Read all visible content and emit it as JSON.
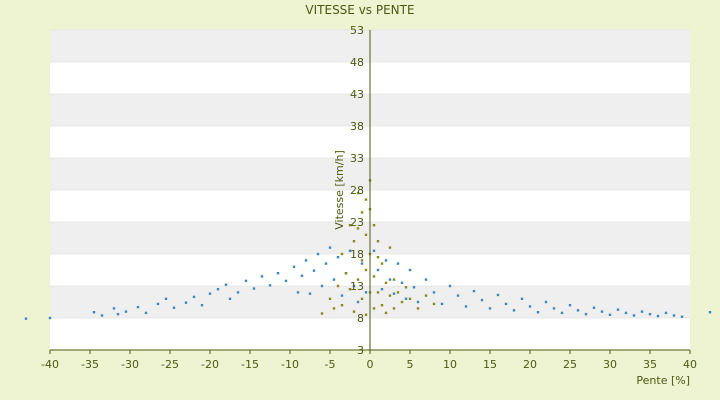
{
  "chart_data": {
    "type": "scatter",
    "title": "VITESSE vs PENTE",
    "xlabel": "Pente [%]",
    "ylabel": "Vitesse [km/h]",
    "xlim": [
      -40,
      40
    ],
    "ylim": [
      3,
      53
    ],
    "x_ticks": [
      "-40",
      "-35",
      "-30",
      "-25",
      "-20",
      "-15",
      "-10",
      "-5",
      "0",
      "5",
      "10",
      "15",
      "20",
      "25",
      "30",
      "35",
      "40"
    ],
    "y_ticks": [
      "3",
      "8",
      "13",
      "18",
      "23",
      "28",
      "33",
      "38",
      "43",
      "48",
      "53"
    ],
    "grid": "horizontal bands",
    "colors": {
      "series_blue": "#3d86c6",
      "series_olive": "#8a8a1a",
      "axis": "#4a5a10",
      "band": "#efefef"
    },
    "series": [
      {
        "color": "#3d86c6",
        "points": [
          [
            -43.0,
            7.9
          ],
          [
            -34.5,
            8.9
          ],
          [
            -33.5,
            8.4
          ],
          [
            -32.0,
            9.5
          ],
          [
            -31.5,
            8.6
          ],
          [
            -30.5,
            9.0
          ],
          [
            -29.0,
            9.7
          ],
          [
            -28.0,
            8.8
          ],
          [
            -26.5,
            10.2
          ],
          [
            -25.5,
            11.0
          ],
          [
            -24.5,
            9.6
          ],
          [
            -23.0,
            10.4
          ],
          [
            -22.0,
            11.3
          ],
          [
            -21.0,
            10.0
          ],
          [
            -20.0,
            11.8
          ],
          [
            -19.0,
            12.5
          ],
          [
            -18.0,
            13.2
          ],
          [
            -17.5,
            11.0
          ],
          [
            -16.5,
            12.0
          ],
          [
            -15.5,
            13.8
          ],
          [
            -14.5,
            12.6
          ],
          [
            -13.5,
            14.5
          ],
          [
            -12.5,
            13.1
          ],
          [
            -11.5,
            15.0
          ],
          [
            -10.5,
            13.8
          ],
          [
            -9.5,
            16.0
          ],
          [
            -9.0,
            12.0
          ],
          [
            -8.5,
            14.6
          ],
          [
            -8.0,
            17.0
          ],
          [
            -7.5,
            11.8
          ],
          [
            -7.0,
            15.4
          ],
          [
            -6.5,
            18.0
          ],
          [
            -6.0,
            13.0
          ],
          [
            -5.5,
            16.5
          ],
          [
            -5.0,
            19.0
          ],
          [
            -4.5,
            14.0
          ],
          [
            -4.0,
            17.5
          ],
          [
            -3.5,
            11.5
          ],
          [
            -3.0,
            15.0
          ],
          [
            -2.5,
            18.5
          ],
          [
            -2.0,
            13.0
          ],
          [
            -1.5,
            10.5
          ],
          [
            -1.0,
            16.5
          ],
          [
            -0.5,
            12.0
          ],
          [
            0.5,
            18.5
          ],
          [
            1.0,
            15.5
          ],
          [
            1.5,
            12.5
          ],
          [
            2.0,
            17.0
          ],
          [
            2.5,
            14.0
          ],
          [
            3.0,
            11.8
          ],
          [
            3.5,
            16.5
          ],
          [
            4.0,
            13.5
          ],
          [
            4.5,
            11.0
          ],
          [
            5.0,
            15.5
          ],
          [
            5.5,
            12.8
          ],
          [
            6.0,
            10.5
          ],
          [
            7.0,
            14.0
          ],
          [
            8.0,
            12.0
          ],
          [
            9.0,
            10.2
          ],
          [
            10.0,
            13.0
          ],
          [
            11.0,
            11.5
          ],
          [
            12.0,
            9.8
          ],
          [
            13.0,
            12.2
          ],
          [
            14.0,
            10.8
          ],
          [
            15.0,
            9.5
          ],
          [
            16.0,
            11.6
          ],
          [
            17.0,
            10.2
          ],
          [
            18.0,
            9.2
          ],
          [
            19.0,
            11.0
          ],
          [
            20.0,
            9.8
          ],
          [
            21.0,
            8.9
          ],
          [
            22.0,
            10.5
          ],
          [
            23.0,
            9.5
          ],
          [
            24.0,
            8.8
          ],
          [
            25.0,
            10.0
          ],
          [
            26.0,
            9.2
          ],
          [
            27.0,
            8.6
          ],
          [
            28.0,
            9.6
          ],
          [
            29.0,
            9.0
          ],
          [
            30.0,
            8.5
          ],
          [
            31.0,
            9.3
          ],
          [
            32.0,
            8.8
          ],
          [
            33.0,
            8.4
          ],
          [
            34.0,
            9.0
          ],
          [
            35.0,
            8.6
          ],
          [
            36.0,
            8.3
          ],
          [
            37.0,
            8.8
          ],
          [
            38.0,
            8.4
          ],
          [
            39.0,
            8.2
          ],
          [
            42.5,
            8.9
          ],
          [
            -40.0,
            8.0
          ]
        ]
      },
      {
        "color": "#8a8a1a",
        "points": [
          [
            -6.0,
            8.7
          ],
          [
            -5.0,
            11.0
          ],
          [
            -4.5,
            9.5
          ],
          [
            -4.0,
            13.0
          ],
          [
            -3.5,
            10.0
          ],
          [
            -3.0,
            15.0
          ],
          [
            -2.5,
            12.5
          ],
          [
            -2.0,
            9.0
          ],
          [
            -2.0,
            20.0
          ],
          [
            -1.5,
            22.0
          ],
          [
            -1.5,
            14.0
          ],
          [
            -1.0,
            24.5
          ],
          [
            -1.0,
            17.0
          ],
          [
            -1.0,
            11.0
          ],
          [
            -0.5,
            26.5
          ],
          [
            -0.5,
            21.0
          ],
          [
            -0.5,
            8.5
          ],
          [
            0.0,
            25.0
          ],
          [
            0.0,
            18.0
          ],
          [
            0.0,
            12.0
          ],
          [
            0.5,
            22.5
          ],
          [
            0.5,
            14.5
          ],
          [
            0.5,
            9.5
          ],
          [
            1.0,
            20.0
          ],
          [
            1.0,
            12.0
          ],
          [
            1.5,
            16.5
          ],
          [
            1.5,
            10.0
          ],
          [
            2.0,
            13.5
          ],
          [
            2.0,
            8.8
          ],
          [
            2.5,
            11.5
          ],
          [
            3.0,
            14.0
          ],
          [
            3.0,
            9.5
          ],
          [
            3.5,
            12.0
          ],
          [
            4.0,
            10.5
          ],
          [
            4.5,
            12.8
          ],
          [
            5.0,
            11.0
          ],
          [
            6.0,
            9.5
          ],
          [
            7.0,
            11.5
          ],
          [
            8.0,
            10.2
          ],
          [
            -1.5,
            27.5
          ],
          [
            0.0,
            29.5
          ],
          [
            -0.5,
            15.5
          ],
          [
            1.0,
            17.5
          ],
          [
            -2.5,
            22.5
          ],
          [
            -3.5,
            18.0
          ],
          [
            2.5,
            19.0
          ]
        ]
      }
    ]
  }
}
